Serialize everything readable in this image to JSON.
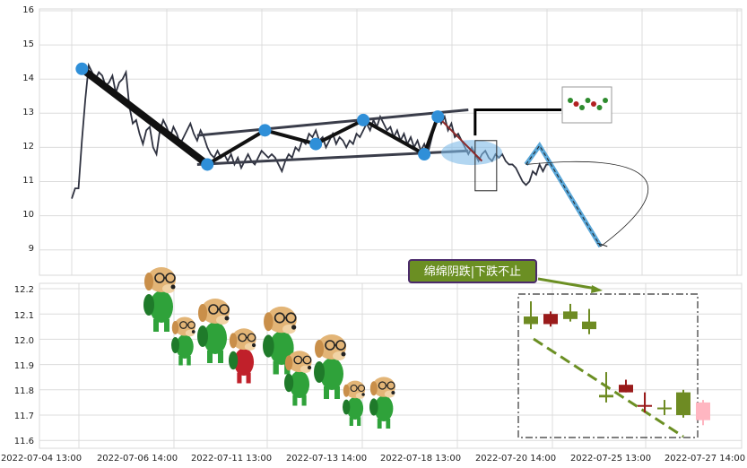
{
  "chart_data": [
    {
      "type": "line",
      "title": "",
      "xlabel": "",
      "ylabel": "",
      "ylim": [
        8.2,
        16.1
      ],
      "y_ticks": [
        "16",
        "15",
        "14",
        "13",
        "12",
        "11",
        "10",
        "9"
      ],
      "grid": true,
      "series": [
        {
          "values": [
            10.5,
            10.8,
            10.8,
            12.2,
            13.4,
            14.4,
            14.2,
            14.0,
            14.2,
            14.1,
            13.8,
            13.9,
            14.1,
            13.6,
            13.9,
            14.0,
            14.2,
            13.2,
            12.7,
            12.8,
            12.4,
            12.1,
            12.5,
            12.6,
            12.0,
            11.8,
            12.5,
            12.8,
            12.6,
            12.3,
            12.6,
            12.4,
            12.1,
            12.3,
            12.5,
            12.7,
            12.4,
            12.2,
            12.5,
            12.3,
            12.0,
            11.8,
            11.7,
            11.9,
            11.7,
            11.8,
            11.6,
            11.8,
            11.5,
            11.7,
            11.4,
            11.6,
            11.8,
            11.6,
            11.5,
            11.7,
            11.9,
            11.8,
            11.7,
            11.8,
            11.7,
            11.5,
            11.3,
            11.6,
            11.8,
            11.7,
            12.0,
            11.9,
            12.2,
            12.1,
            12.4,
            12.3,
            12.5,
            12.2,
            12.3,
            12.0,
            12.2,
            12.4,
            12.1,
            12.3,
            12.2,
            12.0,
            12.2,
            12.1,
            12.4,
            12.3,
            12.5,
            12.7,
            12.5,
            12.8,
            12.6,
            12.9,
            12.7,
            12.5,
            12.6,
            12.3,
            12.5,
            12.2,
            12.4,
            12.1,
            12.3,
            12.0,
            12.2,
            11.9,
            12.1,
            11.8,
            12.2,
            12.6,
            13.0,
            12.7,
            12.9,
            12.5,
            12.7,
            12.3,
            12.4,
            12.2,
            12.0,
            11.8,
            12.0,
            11.8,
            11.6,
            11.8,
            11.9,
            11.7,
            11.6,
            11.8,
            11.7,
            11.8,
            11.6,
            11.5,
            11.5,
            11.4,
            11.2,
            11.0,
            10.9,
            11.0,
            11.3,
            11.2,
            11.5,
            11.3,
            11.5,
            11.5
          ]
        }
      ],
      "annotations": {
        "pivot_points": [
          {
            "i": 3,
            "y": 14.3
          },
          {
            "i": 40,
            "y": 11.5
          },
          {
            "i": 57,
            "y": 12.5
          },
          {
            "i": 72,
            "y": 12.1
          },
          {
            "i": 86,
            "y": 12.8
          },
          {
            "i": 104,
            "y": 11.8
          },
          {
            "i": 108,
            "y": 12.9
          }
        ],
        "channel_upper": [
          {
            "i": 37,
            "y": 12.35
          },
          {
            "i": 117,
            "y": 13.1
          }
        ],
        "channel_lower": [
          {
            "i": 37,
            "y": 11.5
          },
          {
            "i": 117,
            "y": 11.9
          }
        ],
        "projection": [
          {
            "i": 134,
            "y": 11.5
          },
          {
            "i": 138,
            "y": 12.05
          },
          {
            "i": 156,
            "y": 9.1
          }
        ]
      }
    },
    {
      "type": "candlestick",
      "title": "",
      "xlabel": "",
      "ylabel": "",
      "ylim": [
        11.58,
        12.22
      ],
      "y_ticks": [
        "12.2",
        "12.1",
        "12.0",
        "11.9",
        "11.8",
        "11.7",
        "11.6"
      ],
      "x_ticks": [
        "2022-07-04 13:00",
        "2022-07-06 14:00",
        "2022-07-11 13:00",
        "2022-07-13 14:00",
        "2022-07-18 13:00",
        "2022-07-20 14:00",
        "2022-07-25 13:00",
        "2022-07-27 14:00"
      ],
      "grid": true,
      "candles": [
        {
          "x": 592,
          "open": 12.09,
          "close": 12.06,
          "high": 12.15,
          "low": 12.04,
          "color": "#6e8b23"
        },
        {
          "x": 614,
          "open": 12.06,
          "close": 12.1,
          "high": 12.11,
          "low": 12.05,
          "color": "#9a1b1b"
        },
        {
          "x": 636,
          "open": 12.08,
          "close": 12.11,
          "high": 12.14,
          "low": 12.07,
          "color": "#6e8b23"
        },
        {
          "x": 657,
          "open": 12.07,
          "close": 12.04,
          "high": 12.12,
          "low": 12.02,
          "color": "#6e8b23"
        },
        {
          "x": 676,
          "open": 11.78,
          "close": 11.77,
          "high": 11.87,
          "low": 11.75,
          "color": "#6e8b23"
        },
        {
          "x": 698,
          "open": 11.79,
          "close": 11.82,
          "high": 11.84,
          "low": 11.79,
          "color": "#9a1b1b"
        },
        {
          "x": 719,
          "open": 11.74,
          "close": 11.74,
          "high": 11.79,
          "low": 11.71,
          "color": "#9a1b1b"
        },
        {
          "x": 741,
          "open": 11.73,
          "close": 11.73,
          "high": 11.76,
          "low": 11.7,
          "color": "#6e8b23"
        },
        {
          "x": 762,
          "open": 11.7,
          "close": 11.79,
          "high": 11.8,
          "low": 11.69,
          "color": "#6e8b23"
        },
        {
          "x": 784,
          "open": 11.68,
          "close": 11.75,
          "high": 11.76,
          "low": 11.66,
          "color": "#ffb6c1"
        }
      ],
      "callout": "绵绵阴跌|下跌不止"
    }
  ],
  "colors": {
    "price_line": "#2f3240",
    "pivot": "#2f8fd8",
    "trend": "#111111",
    "channel": "#3a3d4a",
    "projection": "#5aa7d8",
    "up_candle": "#9a1b1b",
    "down_candle": "#6e8b23",
    "callout_fill": "#6b8f23",
    "callout_border": "#4b2a6b",
    "dashed_trend": "#6b8f23"
  }
}
